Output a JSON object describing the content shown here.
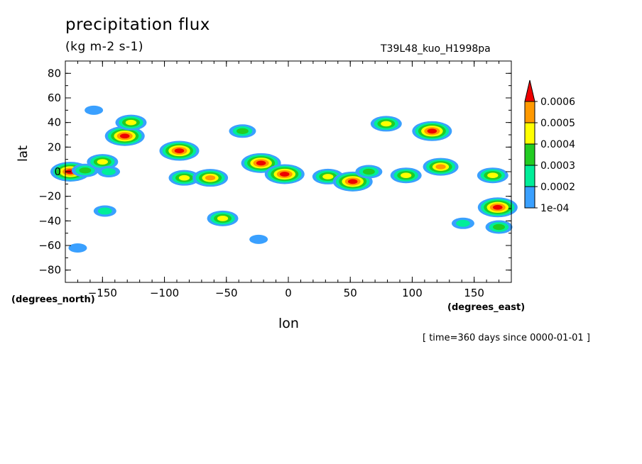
{
  "chart_data": {
    "type": "heatmap",
    "title": "precipitation flux",
    "units": "(kg m-2 s-1)",
    "run_label": "T39L48_kuo_H1998pa",
    "xlabel": "lon",
    "ylabel": "lat",
    "x_unit_label": "(degrees_east)",
    "y_unit_label": "(degrees_north)",
    "time_note": "[ time=360 days since 0000-01-01 ]",
    "xlim": [
      -180,
      180
    ],
    "ylim": [
      -90,
      90
    ],
    "x_ticks": [
      -150,
      -100,
      -50,
      0,
      50,
      100,
      150
    ],
    "y_ticks": [
      80,
      60,
      40,
      20,
      0,
      -20,
      -40,
      -60,
      -80
    ],
    "colorbar": {
      "levels": [
        "1e-04",
        "0.0002",
        "0.0003",
        "0.0004",
        "0.0005",
        "0.0006"
      ],
      "colors": [
        "#3aa0ff",
        "#00ee99",
        "#22cc22",
        "#ffff00",
        "#ff9900",
        "#ee0000"
      ]
    },
    "features": [
      {
        "lon": -176,
        "lat": 0,
        "level": 6
      },
      {
        "lon": -164,
        "lat": 1,
        "level": 3
      },
      {
        "lon": -150,
        "lat": 8,
        "level": 4
      },
      {
        "lon": -145,
        "lat": 0,
        "level": 2
      },
      {
        "lon": -132,
        "lat": 29,
        "level": 6
      },
      {
        "lon": -127,
        "lat": 40,
        "level": 4
      },
      {
        "lon": -88,
        "lat": 17,
        "level": 6
      },
      {
        "lon": -84,
        "lat": -5,
        "level": 4
      },
      {
        "lon": -63,
        "lat": -5,
        "level": 5
      },
      {
        "lon": -53,
        "lat": -38,
        "level": 4
      },
      {
        "lon": -37,
        "lat": 33,
        "level": 3
      },
      {
        "lon": -22,
        "lat": 7,
        "level": 6
      },
      {
        "lon": -3,
        "lat": -2,
        "level": 6
      },
      {
        "lon": 32,
        "lat": -4,
        "level": 4
      },
      {
        "lon": 52,
        "lat": -8,
        "level": 6
      },
      {
        "lon": 65,
        "lat": 0,
        "level": 3
      },
      {
        "lon": 79,
        "lat": 39,
        "level": 4
      },
      {
        "lon": 95,
        "lat": -3,
        "level": 4
      },
      {
        "lon": 116,
        "lat": 33,
        "level": 6
      },
      {
        "lon": 123,
        "lat": 4,
        "level": 5
      },
      {
        "lon": 165,
        "lat": -3,
        "level": 4
      },
      {
        "lon": 169,
        "lat": -29,
        "level": 6
      },
      {
        "lon": 170,
        "lat": -45,
        "level": 3
      },
      {
        "lon": 141,
        "lat": -42,
        "level": 2
      },
      {
        "lon": -148,
        "lat": -32,
        "level": 2
      },
      {
        "lon": -157,
        "lat": 50,
        "level": 1
      },
      {
        "lon": -170,
        "lat": -62,
        "level": 1
      },
      {
        "lon": -24,
        "lat": -55,
        "level": 1
      }
    ]
  }
}
